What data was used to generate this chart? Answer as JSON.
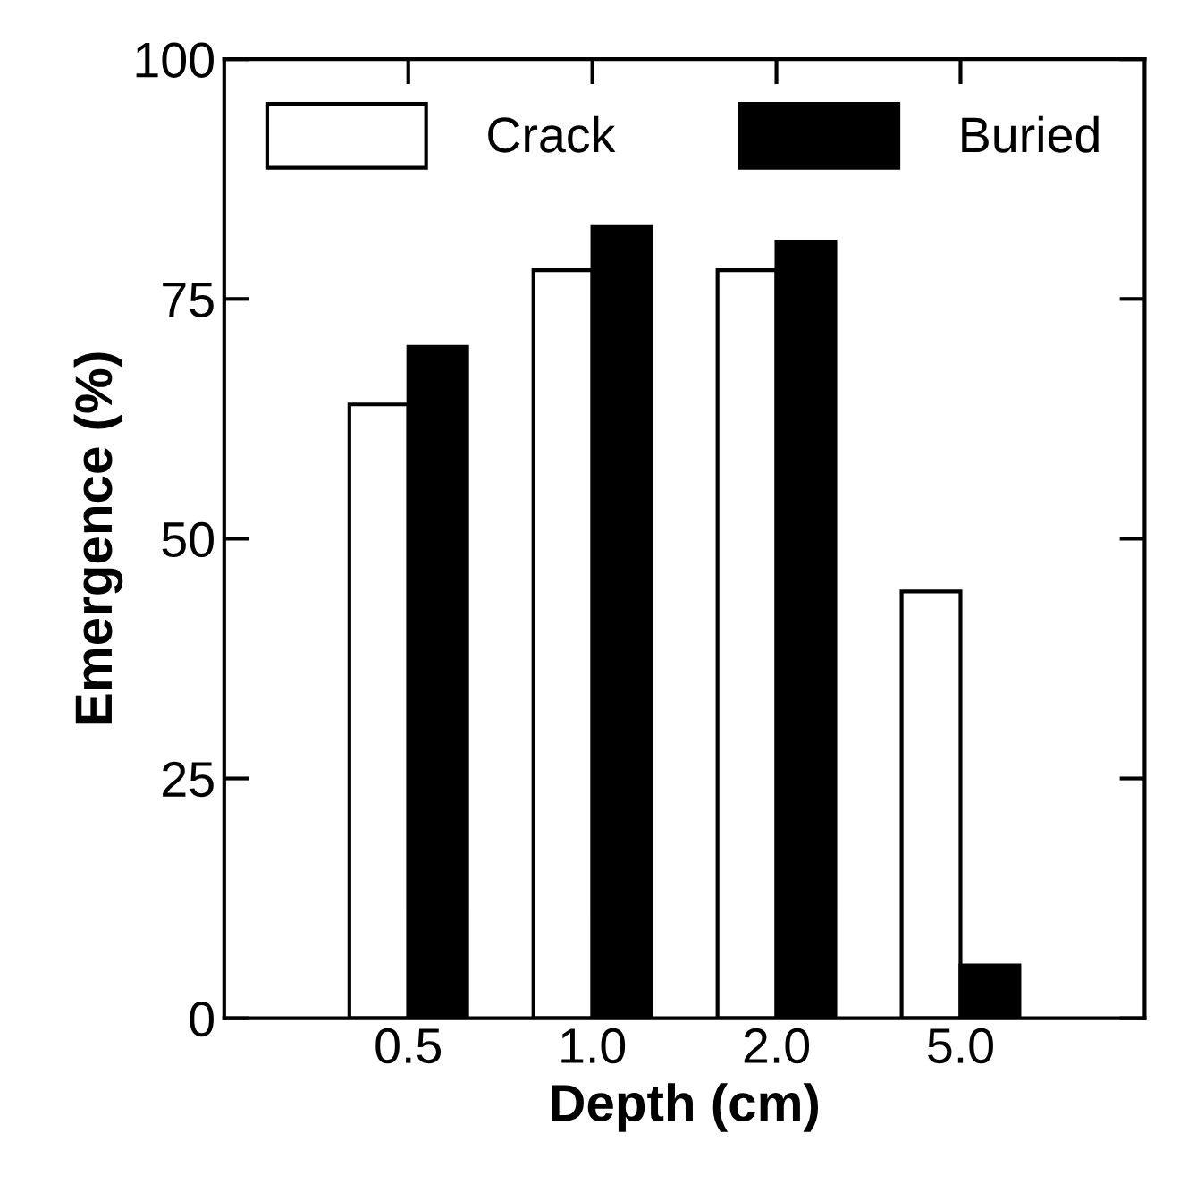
{
  "chart_data": {
    "type": "bar",
    "xlabel": "Depth (cm)",
    "ylabel": "Emergence (%)",
    "categories": [
      "0.5",
      "1.0",
      "2.0",
      "5.0"
    ],
    "series": [
      {
        "name": "Crack",
        "color": "#ffffff",
        "values": [
          64,
          78,
          78,
          44.5
        ]
      },
      {
        "name": "Buried",
        "color": "#000000",
        "values": [
          70,
          82.5,
          81,
          5.5
        ]
      }
    ],
    "ylim": [
      0,
      100
    ],
    "yticks": [
      0,
      25,
      50,
      75,
      100
    ],
    "grid": false,
    "legend": "top"
  }
}
